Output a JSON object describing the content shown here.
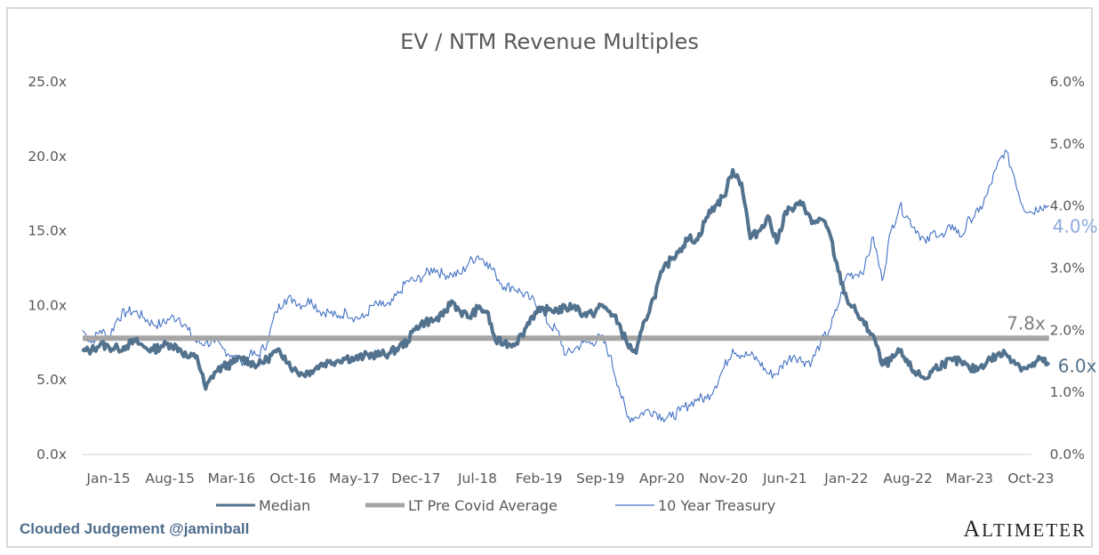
{
  "chart_data": {
    "type": "line",
    "title": "EV / NTM Revenue Multiples",
    "xlabel": "",
    "ylabel": "",
    "y2label": "",
    "x_ticks": [
      "Jan-15",
      "Aug-15",
      "Mar-16",
      "Oct-16",
      "May-17",
      "Dec-17",
      "Jul-18",
      "Feb-19",
      "Sep-19",
      "Apr-20",
      "Nov-20",
      "Jun-21",
      "Jan-22",
      "Aug-22",
      "Mar-23",
      "Oct-23"
    ],
    "y_ticks": [
      "0.0x",
      "5.0x",
      "10.0x",
      "15.0x",
      "20.0x",
      "25.0x"
    ],
    "y2_ticks": [
      "0.0%",
      "1.0%",
      "2.0%",
      "3.0%",
      "4.0%",
      "5.0%",
      "6.0%"
    ],
    "ylim": [
      0,
      25
    ],
    "y2lim": [
      0,
      6
    ],
    "x_start": "Jan-15",
    "x_frequency": "monthly",
    "grid": false,
    "legend_position": "bottom",
    "series": [
      {
        "name": "Median",
        "axis": "left",
        "color": "#52728e",
        "end_label": "6.0x",
        "values": [
          6.9,
          7.0,
          7.4,
          7.2,
          7.1,
          7.3,
          7.6,
          7.2,
          7.0,
          7.3,
          7.4,
          7.1,
          6.5,
          6.6,
          4.4,
          5.5,
          5.9,
          6.1,
          6.5,
          6.2,
          6.0,
          6.4,
          6.9,
          6.6,
          5.7,
          5.4,
          5.6,
          6.0,
          6.2,
          6.3,
          6.5,
          6.4,
          6.6,
          6.7,
          6.7,
          6.8,
          7.2,
          7.6,
          8.6,
          8.9,
          9.0,
          9.3,
          10.3,
          9.6,
          9.2,
          9.8,
          9.6,
          7.6,
          7.5,
          7.4,
          8.0,
          9.2,
          9.6,
          9.7,
          9.7,
          9.8,
          10.0,
          9.4,
          9.4,
          10.0,
          9.6,
          8.8,
          7.4,
          6.8,
          9.0,
          10.5,
          12.3,
          13.1,
          13.8,
          14.5,
          14.4,
          15.9,
          16.7,
          17.3,
          19.1,
          18.2,
          14.5,
          15.0,
          16.0,
          14.2,
          16.3,
          16.5,
          16.9,
          15.5,
          15.8,
          14.9,
          12.3,
          10.4,
          9.6,
          8.7,
          8.0,
          6.0,
          6.3,
          6.9,
          6.0,
          5.4,
          5.1,
          5.8,
          6.1,
          6.3,
          6.2,
          5.7,
          5.8,
          6.3,
          6.6,
          6.8,
          6.3,
          5.8,
          5.9,
          6.4,
          6.0
        ]
      },
      {
        "name": "LT Pre Covid Average",
        "axis": "left",
        "color": "#a5a5a5",
        "end_label": "7.8x",
        "value": 7.8
      },
      {
        "name": "10 Year Treasury",
        "axis": "right",
        "color": "#4472c4",
        "end_label": "4.0%",
        "values": [
          2.0,
          1.8,
          2.0,
          1.9,
          2.2,
          2.3,
          2.3,
          2.2,
          2.1,
          2.1,
          2.2,
          2.2,
          2.0,
          1.8,
          1.8,
          1.8,
          1.7,
          1.6,
          1.5,
          1.6,
          1.6,
          1.8,
          2.3,
          2.5,
          2.5,
          2.4,
          2.5,
          2.3,
          2.3,
          2.2,
          2.3,
          2.2,
          2.2,
          2.4,
          2.4,
          2.4,
          2.6,
          2.8,
          2.8,
          2.9,
          3.0,
          2.9,
          2.9,
          2.9,
          3.1,
          3.2,
          3.1,
          2.9,
          2.7,
          2.7,
          2.6,
          2.5,
          2.4,
          2.1,
          2.0,
          1.6,
          1.7,
          1.8,
          1.8,
          1.9,
          1.6,
          1.1,
          0.6,
          0.6,
          0.7,
          0.7,
          0.6,
          0.6,
          0.7,
          0.8,
          0.9,
          0.9,
          1.1,
          1.4,
          1.7,
          1.6,
          1.6,
          1.5,
          1.3,
          1.3,
          1.5,
          1.6,
          1.5,
          1.5,
          1.8,
          2.0,
          2.4,
          2.9,
          2.9,
          3.0,
          3.5,
          2.8,
          3.6,
          4.0,
          3.8,
          3.6,
          3.4,
          3.6,
          3.5,
          3.7,
          3.5,
          3.8,
          3.9,
          4.2,
          4.6,
          4.9,
          4.5,
          4.0,
          3.9,
          4.0,
          4.0
        ]
      }
    ],
    "annotations": [
      "7.8x",
      "6.0x",
      "4.0%"
    ]
  },
  "legend": {
    "items": [
      {
        "label": "Median"
      },
      {
        "label": "LT Pre Covid Average"
      },
      {
        "label": "10 Year Treasury"
      }
    ]
  },
  "footer": {
    "credit": "Clouded Judgement @jaminball",
    "brand": "Altimeter"
  }
}
